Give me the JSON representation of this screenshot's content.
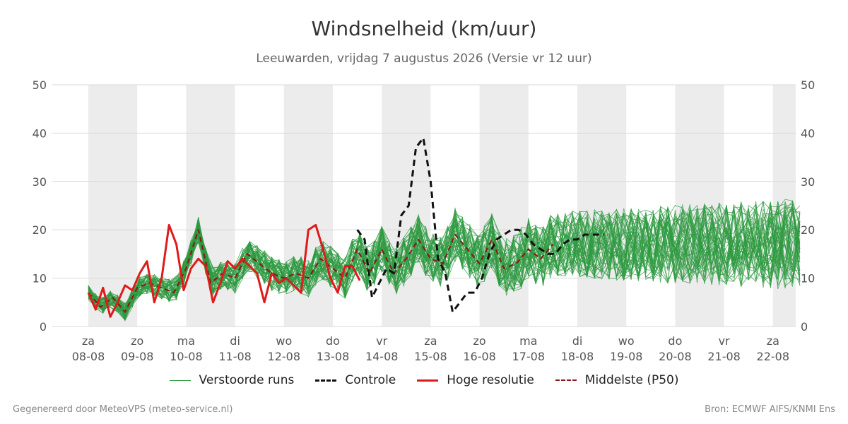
{
  "chart_data": {
    "type": "line",
    "title": "Windsnelheid (km/uur)",
    "subtitle": "Leeuwarden, vrijdag  7 augustus 2026 (Versie vr 12 uur)",
    "ylim": [
      0,
      50
    ],
    "y_ticks": [
      0,
      10,
      20,
      30,
      40,
      50
    ],
    "x_range": [
      "2026-08-08 00:00",
      "2026-08-22 12:00"
    ],
    "grid": true,
    "weekend_shading": true,
    "legend_position": "bottom",
    "x_ticks": [
      {
        "day": "za",
        "date": "08-08"
      },
      {
        "day": "zo",
        "date": "09-08"
      },
      {
        "day": "ma",
        "date": "10-08"
      },
      {
        "day": "di",
        "date": "11-08"
      },
      {
        "day": "wo",
        "date": "12-08"
      },
      {
        "day": "do",
        "date": "13-08"
      },
      {
        "day": "vr",
        "date": "14-08"
      },
      {
        "day": "za",
        "date": "15-08"
      },
      {
        "day": "zo",
        "date": "16-08"
      },
      {
        "day": "ma",
        "date": "17-08"
      },
      {
        "day": "di",
        "date": "18-08"
      },
      {
        "day": "wo",
        "date": "19-08"
      },
      {
        "day": "do",
        "date": "20-08"
      },
      {
        "day": "vr",
        "date": "21-08"
      },
      {
        "day": "za",
        "date": "22-08"
      }
    ],
    "series": [
      {
        "name": "Verstoorde runs",
        "style": "ensemble",
        "color": "#2e9a40",
        "count": 50
      },
      {
        "name": "Controle",
        "style": "dashed",
        "color": "#111111",
        "x": [
          13.5,
          13.65,
          13.8,
          13.95,
          14.1,
          14.25,
          14.4,
          14.55,
          14.7,
          14.85,
          15.0,
          15.15,
          15.3,
          15.45,
          15.6,
          15.75,
          15.9,
          16.05,
          16.2,
          16.35,
          16.5,
          16.65,
          16.8,
          16.95,
          17.1,
          17.25,
          17.4,
          17.55,
          17.7,
          17.85,
          18.0,
          18.15,
          18.3,
          18.45,
          18.55
        ],
        "values": [
          20,
          18,
          6,
          9,
          12,
          11,
          23,
          25,
          37,
          39,
          30,
          14,
          11,
          3,
          5,
          7,
          7,
          10,
          15,
          18,
          19,
          20,
          20,
          19,
          17,
          16,
          15,
          15,
          17,
          18,
          18,
          19,
          19,
          19,
          19
        ]
      },
      {
        "name": "Hoge resolutie",
        "style": "solid",
        "color": "#e01a1a",
        "x": [
          8.0,
          8.15,
          8.3,
          8.45,
          8.6,
          8.75,
          8.9,
          9.05,
          9.2,
          9.35,
          9.5,
          9.65,
          9.8,
          9.95,
          10.1,
          10.25,
          10.4,
          10.55,
          10.7,
          10.85,
          11.0,
          11.15,
          11.3,
          11.45,
          11.6,
          11.75,
          11.9,
          12.05,
          12.2,
          12.35,
          12.5,
          12.65,
          12.8,
          12.95,
          13.1,
          13.25,
          13.4,
          13.55
        ],
        "values": [
          7,
          3.5,
          8,
          2,
          5,
          8.5,
          7.5,
          11,
          13.5,
          5,
          10,
          21,
          17,
          7.5,
          12,
          14,
          12.5,
          5,
          9,
          13.5,
          12,
          14,
          12.5,
          11,
          5,
          11,
          9,
          10,
          8.5,
          7,
          20,
          21,
          16,
          10,
          7,
          12.5,
          12.5,
          9.5
        ]
      },
      {
        "name": "Middelste (P50)",
        "style": "dashed",
        "color": "#8b1a1a",
        "x": [
          8.0,
          8.25,
          8.5,
          8.75,
          9.0,
          9.25,
          9.5,
          9.75,
          10.0,
          10.25,
          10.5,
          10.75,
          11.0,
          11.25,
          11.5,
          11.75,
          12.0,
          12.25,
          12.5,
          12.75,
          13.0,
          13.25,
          13.5,
          13.75,
          14.0,
          14.25,
          14.5,
          14.75,
          15.0,
          15.25,
          15.5,
          15.75,
          16.0,
          16.25,
          16.5,
          16.75,
          17.0,
          17.25,
          17.5
        ],
        "values": [
          7,
          4,
          6,
          3,
          8,
          9,
          8,
          7,
          12,
          20,
          9,
          11,
          10,
          15,
          13,
          11,
          10,
          11,
          10,
          14,
          12,
          10,
          16,
          11,
          16,
          11,
          14,
          18,
          14,
          13,
          19,
          16,
          13,
          18,
          12,
          13,
          16,
          14,
          17
        ]
      }
    ]
  },
  "footer": {
    "left": "Gegenereerd door MeteoVPS (meteo-service.nl)",
    "right": "Bron: ECMWF AIFS/KNMI Ens"
  }
}
